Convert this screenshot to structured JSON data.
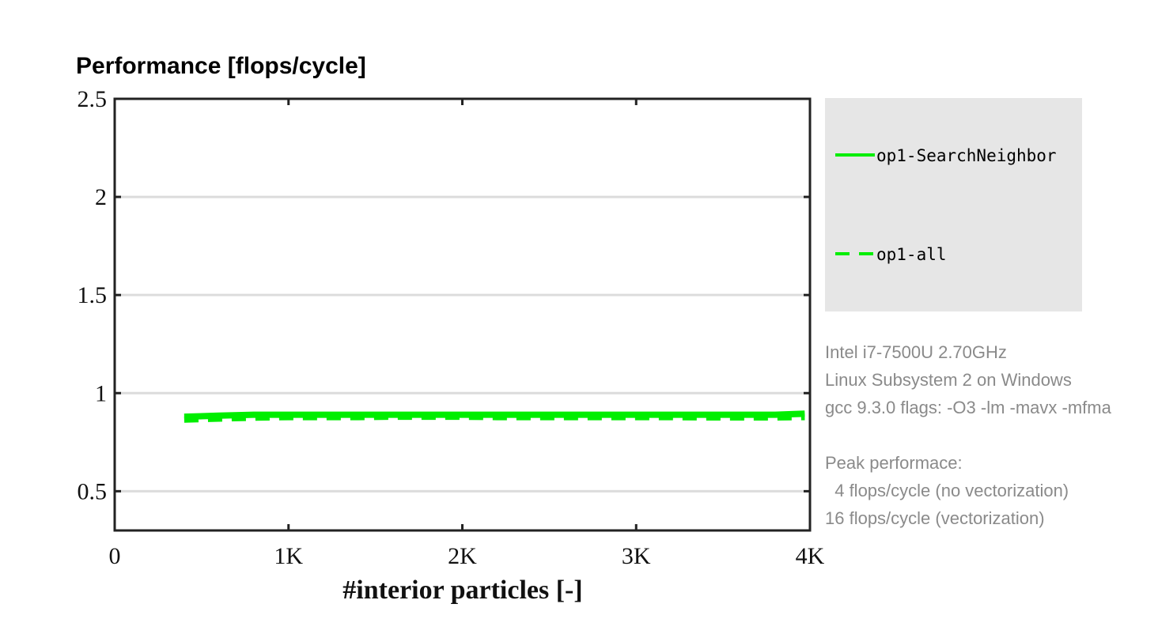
{
  "chart_data": {
    "type": "line",
    "title": "Performance [flops/cycle]",
    "xlabel": "#interior particles [-]",
    "ylabel": "",
    "xlim": [
      0,
      4000
    ],
    "ylim": [
      0.3,
      2.5
    ],
    "xticks": [
      {
        "value": 0,
        "label": "0"
      },
      {
        "value": 1000,
        "label": "1K"
      },
      {
        "value": 2000,
        "label": "2K"
      },
      {
        "value": 3000,
        "label": "3K"
      },
      {
        "value": 4000,
        "label": "4K"
      }
    ],
    "yticks": [
      {
        "value": 0.5,
        "label": "0.5"
      },
      {
        "value": 1,
        "label": "1"
      },
      {
        "value": 1.5,
        "label": "1.5"
      },
      {
        "value": 2,
        "label": "2"
      },
      {
        "value": 2.5,
        "label": "2.5"
      }
    ],
    "grid": "horizontal",
    "legend_placement": "right",
    "series": [
      {
        "name": "op1-SearchNeighbor",
        "style": "solid",
        "color": "#00ee00",
        "x": [
          400,
          600,
          800,
          1000,
          1200,
          1400,
          1600,
          1800,
          2000,
          2200,
          2400,
          2600,
          2800,
          3000,
          3200,
          3400,
          3600,
          3800,
          3970
        ],
        "y": [
          0.88,
          0.885,
          0.89,
          0.89,
          0.89,
          0.89,
          0.89,
          0.89,
          0.89,
          0.89,
          0.89,
          0.89,
          0.89,
          0.89,
          0.89,
          0.89,
          0.89,
          0.89,
          0.895
        ]
      },
      {
        "name": "op1-all",
        "style": "dashed",
        "color": "#00ee00",
        "x": [
          400,
          600,
          800,
          1000,
          1200,
          1400,
          1600,
          1800,
          2000,
          2200,
          2400,
          2600,
          2800,
          3000,
          3200,
          3400,
          3600,
          3800,
          3970
        ],
        "y": [
          0.865,
          0.87,
          0.875,
          0.878,
          0.878,
          0.878,
          0.88,
          0.88,
          0.88,
          0.878,
          0.878,
          0.878,
          0.878,
          0.878,
          0.878,
          0.876,
          0.876,
          0.876,
          0.878
        ]
      }
    ]
  },
  "info": {
    "lines": [
      "Intel i7-7500U 2.70GHz",
      "Linux Subsystem 2 on Windows",
      "gcc 9.3.0 flags: -O3 -lm -mavx -mfma",
      "",
      "Peak performace:",
      "  4 flops/cycle (no vectorization)",
      "16 flops/cycle (vectorization)"
    ]
  },
  "colors": {
    "series": "#00ee00",
    "legend_bg": "#e6e6e6",
    "grid": "#dcdcdc",
    "info_text": "#8a8a8a"
  }
}
